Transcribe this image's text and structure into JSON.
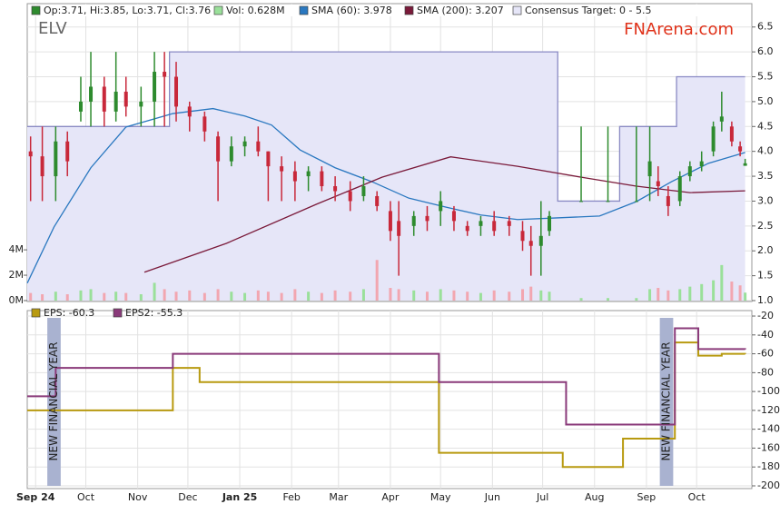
{
  "chart_data": [
    {
      "type": "candlestick",
      "title": "ELV",
      "watermark": "FNArena.com",
      "ohlc_label": "Op:3.71, Hi:3.85, Lo:3.71, Cl:3.76",
      "volume_label": "Vol: 0.628M",
      "up_color": "#2e8b2e",
      "down_color": "#c8283a",
      "volume_up_color": "#9ae09a",
      "volume_down_color": "#f2a6b0",
      "x": [
        -3,
        4,
        12,
        19,
        27,
        33,
        41,
        48,
        54,
        63,
        71,
        77,
        84,
        92,
        101,
        109,
        117,
        125,
        133,
        139,
        147,
        155,
        163,
        171,
        179,
        188,
        196,
        204,
        212,
        217,
        226,
        234,
        242,
        250,
        258,
        266,
        274,
        283,
        291,
        296,
        302,
        307,
        326,
        342,
        359,
        367,
        372,
        378,
        385,
        391,
        398,
        405,
        410,
        416,
        421,
        424
      ],
      "open": [
        4.0,
        3.9,
        3.5,
        4.2,
        4.8,
        5.0,
        5.3,
        4.8,
        5.2,
        4.9,
        5.0,
        5.6,
        5.5,
        4.9,
        4.7,
        4.3,
        3.8,
        4.1,
        4.2,
        4.0,
        3.7,
        3.6,
        3.5,
        3.6,
        3.3,
        3.2,
        3.1,
        3.1,
        2.8,
        2.6,
        2.5,
        2.7,
        2.8,
        2.8,
        2.5,
        2.5,
        2.6,
        2.6,
        2.4,
        2.2,
        2.1,
        2.4,
        3.0,
        3.0,
        3.0,
        3.5,
        3.4,
        3.1,
        3.0,
        3.5,
        3.7,
        4.0,
        4.6,
        4.5,
        4.1,
        3.71
      ],
      "high": [
        4.3,
        4.5,
        4.5,
        4.4,
        5.5,
        6.0,
        5.5,
        6.0,
        5.5,
        5.3,
        6.0,
        6.0,
        5.8,
        5.0,
        4.8,
        4.4,
        4.3,
        4.3,
        4.5,
        4.0,
        3.9,
        3.8,
        3.7,
        3.7,
        3.5,
        3.4,
        3.5,
        3.2,
        3.0,
        3.0,
        2.8,
        2.9,
        3.2,
        2.9,
        2.6,
        2.7,
        2.8,
        2.7,
        2.6,
        2.5,
        3.0,
        2.8,
        4.5,
        4.5,
        4.5,
        4.5,
        3.7,
        3.3,
        3.6,
        3.8,
        4.0,
        4.6,
        5.2,
        4.6,
        4.2,
        3.85
      ],
      "low": [
        3.0,
        3.0,
        3.0,
        3.5,
        4.6,
        4.5,
        4.5,
        4.6,
        4.7,
        4.5,
        4.5,
        4.5,
        4.6,
        4.4,
        4.2,
        3.0,
        3.7,
        3.9,
        3.9,
        3.0,
        3.0,
        3.0,
        3.2,
        3.2,
        3.0,
        2.8,
        3.0,
        2.8,
        2.2,
        1.5,
        2.3,
        2.4,
        2.5,
        2.4,
        2.3,
        2.3,
        2.3,
        2.3,
        2.0,
        1.5,
        1.5,
        2.3,
        3.0,
        3.0,
        3.0,
        3.0,
        3.1,
        2.7,
        2.9,
        3.4,
        3.6,
        3.9,
        4.4,
        4.1,
        3.9,
        3.71
      ],
      "close": [
        3.9,
        3.5,
        4.2,
        3.8,
        5.0,
        5.3,
        4.8,
        5.2,
        4.9,
        5.0,
        5.6,
        5.5,
        4.9,
        4.7,
        4.4,
        3.8,
        4.1,
        4.2,
        4.0,
        3.7,
        3.6,
        3.4,
        3.6,
        3.3,
        3.2,
        3.0,
        3.3,
        2.9,
        2.4,
        2.3,
        2.7,
        2.6,
        3.0,
        2.6,
        2.4,
        2.6,
        2.4,
        2.5,
        2.2,
        2.1,
        2.3,
        2.7,
        3.0,
        3.0,
        3.0,
        3.8,
        3.3,
        2.9,
        3.5,
        3.7,
        3.8,
        4.5,
        4.7,
        4.2,
        4.0,
        3.76
      ],
      "volume": [
        0.6,
        0.5,
        0.7,
        0.5,
        0.8,
        0.9,
        0.6,
        0.7,
        0.6,
        0.5,
        1.4,
        0.9,
        0.7,
        0.8,
        0.6,
        0.9,
        0.7,
        0.6,
        0.8,
        0.7,
        0.6,
        0.9,
        0.7,
        0.6,
        0.8,
        0.7,
        0.9,
        3.2,
        1.0,
        0.9,
        0.8,
        0.7,
        0.9,
        0.8,
        0.7,
        0.6,
        0.8,
        0.7,
        0.9,
        1.1,
        0.8,
        0.7,
        0.2,
        0.2,
        0.2,
        0.9,
        1.0,
        0.8,
        0.9,
        1.1,
        1.3,
        1.6,
        2.8,
        1.5,
        1.2,
        0.628
      ],
      "series": [
        {
          "name": "SMA (60): 3.978",
          "color": "#2a78c0",
          "x": [
            -5,
            11,
            33,
            54,
            82,
            106,
            125,
            141,
            158,
            179,
            201,
            223,
            245,
            266,
            288,
            310,
            337,
            359,
            380,
            402,
            424
          ],
          "values": [
            1.35,
            2.48,
            3.67,
            4.49,
            4.76,
            4.86,
            4.71,
            4.53,
            4.03,
            3.67,
            3.39,
            3.06,
            2.88,
            2.72,
            2.63,
            2.66,
            2.7,
            2.99,
            3.39,
            3.76,
            3.978
          ]
        },
        {
          "name": "SMA (200): 3.207",
          "color": "#7a1a3a",
          "x": [
            65,
            114,
            168,
            207,
            248,
            288,
            326,
            359,
            391,
            424
          ],
          "values": [
            1.57,
            2.15,
            2.94,
            3.48,
            3.89,
            3.7,
            3.48,
            3.3,
            3.17,
            3.207
          ]
        },
        {
          "name": "Consensus Target: 0 - 5.5",
          "color": "#8a8ac4",
          "fill": "#e6e6f8",
          "step": true,
          "x": [
            -5,
            80,
            312,
            349,
            383,
            424
          ],
          "values": [
            4.5,
            6.0,
            3.0,
            4.5,
            5.5,
            5.5
          ]
        }
      ],
      "xlim": [
        -5,
        428
      ],
      "ylim": [
        1.0,
        6.97
      ],
      "yticks": [
        {
          "value": 1,
          "label": "1.0"
        },
        1.5,
        {
          "value": 2,
          "label": "2.0"
        },
        2.5,
        {
          "value": 3,
          "label": "3.0"
        },
        3.5,
        {
          "value": 4,
          "label": "4.0"
        },
        4.5,
        {
          "value": 5,
          "label": "5.0"
        },
        5.5,
        {
          "value": 6,
          "label": "6.0"
        },
        6.5
      ],
      "volume_ylim": [
        0,
        23.4
      ],
      "volume_ticks": [
        {
          "value": 0,
          "label": "0M"
        },
        {
          "value": 2,
          "label": "2M"
        },
        {
          "value": 4,
          "label": "4M"
        }
      ],
      "grid": true
    },
    {
      "type": "step",
      "series": [
        {
          "name": "EPS: -60.3",
          "color": "#b89a10",
          "x": [
            -5,
            82,
            98,
            241,
            315,
            351,
            382,
            396,
            410,
            424
          ],
          "values": [
            -120,
            -75,
            -90,
            -165,
            -180,
            -150,
            -48,
            -62,
            -60,
            -60.3
          ]
        },
        {
          "name": "EPS2: -55.3",
          "color": "#8a3a7a",
          "x": [
            -5,
            12,
            82,
            241,
            317,
            382,
            396,
            424
          ],
          "values": [
            -105,
            -75,
            -60,
            -90,
            -135,
            -33,
            -55,
            -55.3
          ]
        }
      ],
      "annotations": [
        {
          "text": "NEW FINANCIAL YEAR",
          "x": [
            7,
            15
          ]
        },
        {
          "text": "NEW FINANCIAL YEAR",
          "x": [
            373,
            381
          ]
        }
      ],
      "xlim": [
        -5,
        428
      ],
      "ylim": [
        -202.9,
        -14.2
      ],
      "xticks": [
        {
          "value": 0,
          "label": "Sep 24"
        },
        {
          "value": 30,
          "label": "Oct"
        },
        {
          "value": 61,
          "label": "Nov"
        },
        {
          "value": 91,
          "label": "Dec"
        },
        {
          "value": 122,
          "label": "Jan 25"
        },
        {
          "value": 153,
          "label": "Feb"
        },
        {
          "value": 181,
          "label": "Mar"
        },
        {
          "value": 212,
          "label": "Apr"
        },
        {
          "value": 242,
          "label": "May"
        },
        {
          "value": 273,
          "label": "Jun"
        },
        {
          "value": 303,
          "label": "Jul"
        },
        {
          "value": 334,
          "label": "Aug"
        },
        {
          "value": 365,
          "label": "Sep"
        },
        {
          "value": 395,
          "label": "Oct"
        }
      ],
      "yticks": [
        -20,
        -40,
        -60,
        -80,
        -100,
        -120,
        -140,
        -160,
        -180,
        -200
      ],
      "grid": true
    }
  ]
}
